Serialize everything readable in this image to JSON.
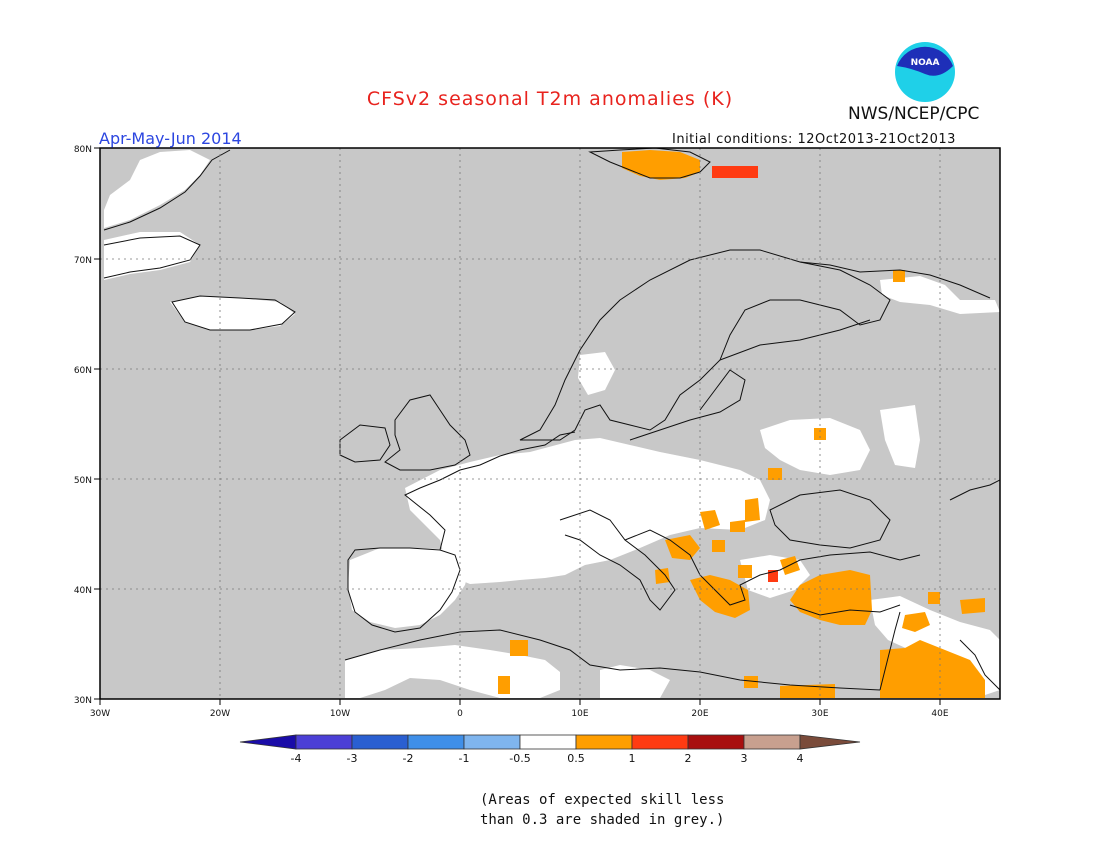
{
  "title": "CFSv2 seasonal T2m anomalies (K)",
  "period": "Apr-May-Jun 2014",
  "initial_conditions": "Initial conditions: 12Oct2013-21Oct2013",
  "agency": "NWS/NCEP/CPC",
  "logo_text": "NOAA",
  "map": {
    "lon_range": [
      -30,
      45
    ],
    "lat_range": [
      30,
      80
    ],
    "lon_labels": [
      "30W",
      "20W",
      "10W",
      "0",
      "10E",
      "20E",
      "30E",
      "40E"
    ],
    "lat_labels": [
      "80N",
      "70N",
      "60N",
      "50N",
      "40N",
      "30N"
    ],
    "grid": "dotted",
    "background_color": "#c8c8c8"
  },
  "colorbar": {
    "labels": [
      "-4",
      "-3",
      "-2",
      "-1",
      "-0.5",
      "0.5",
      "1",
      "2",
      "3",
      "4"
    ],
    "colors": [
      "#1a0ca8",
      "#4b3fd6",
      "#2a5fd1",
      "#3f8fe8",
      "#7fb5ee",
      "#ffffff",
      "#ff9e00",
      "#ff3b12",
      "#a80f0f",
      "#c8a08f",
      "#7a4b3a"
    ]
  },
  "legend_colors": {
    "neutral": "#ffffff",
    "warm_1": "#ff9e00",
    "warm_2": "#ff3b12",
    "low_skill": "#c8c8c8"
  },
  "footnote_line1": "(Areas of expected skill less",
  "footnote_line2": "than 0.3 are shaded in grey.)"
}
